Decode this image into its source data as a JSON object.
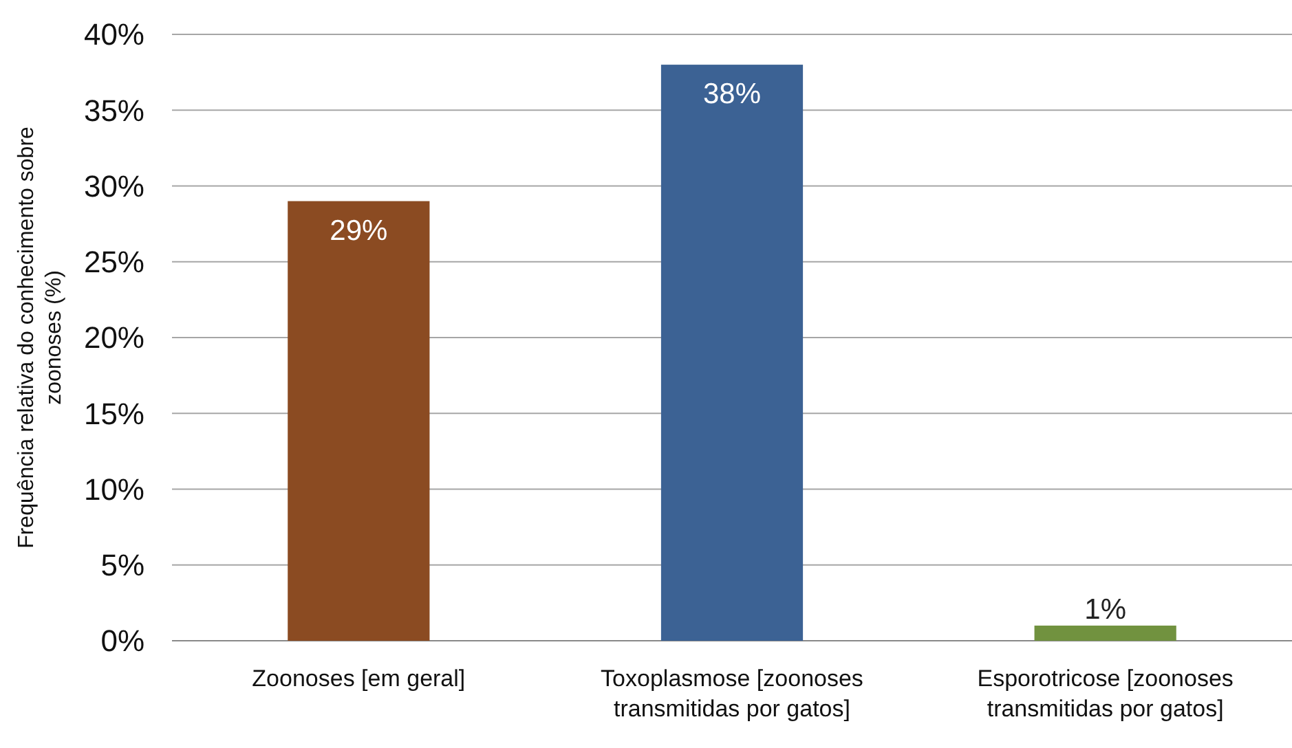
{
  "chart_data": {
    "type": "bar",
    "ylabel": "Frequência relativa do conhecimento sobre zoonoses (%)",
    "categories": [
      "Zoonoses [em geral]",
      "Toxoplasmose [zoonoses transmitidas por gatos]",
      "Esporotricose [zoonoses transmitidas por gatos]"
    ],
    "values": [
      29,
      38,
      1
    ],
    "colors": [
      "#8b4b22",
      "#3c6294",
      "#71923f"
    ],
    "value_labels": [
      "29%",
      "38%",
      "1%"
    ],
    "ylim": [
      0,
      40
    ],
    "yticks": [
      {
        "value": 0,
        "label": "0%"
      },
      {
        "value": 5,
        "label": "5%"
      },
      {
        "value": 10,
        "label": "10%"
      },
      {
        "value": 15,
        "label": "15%"
      },
      {
        "value": 20,
        "label": "20%"
      },
      {
        "value": 25,
        "label": "25%"
      },
      {
        "value": 30,
        "label": "30%"
      },
      {
        "value": 35,
        "label": "35%"
      },
      {
        "value": 40,
        "label": "40%"
      }
    ],
    "grid": "y"
  }
}
